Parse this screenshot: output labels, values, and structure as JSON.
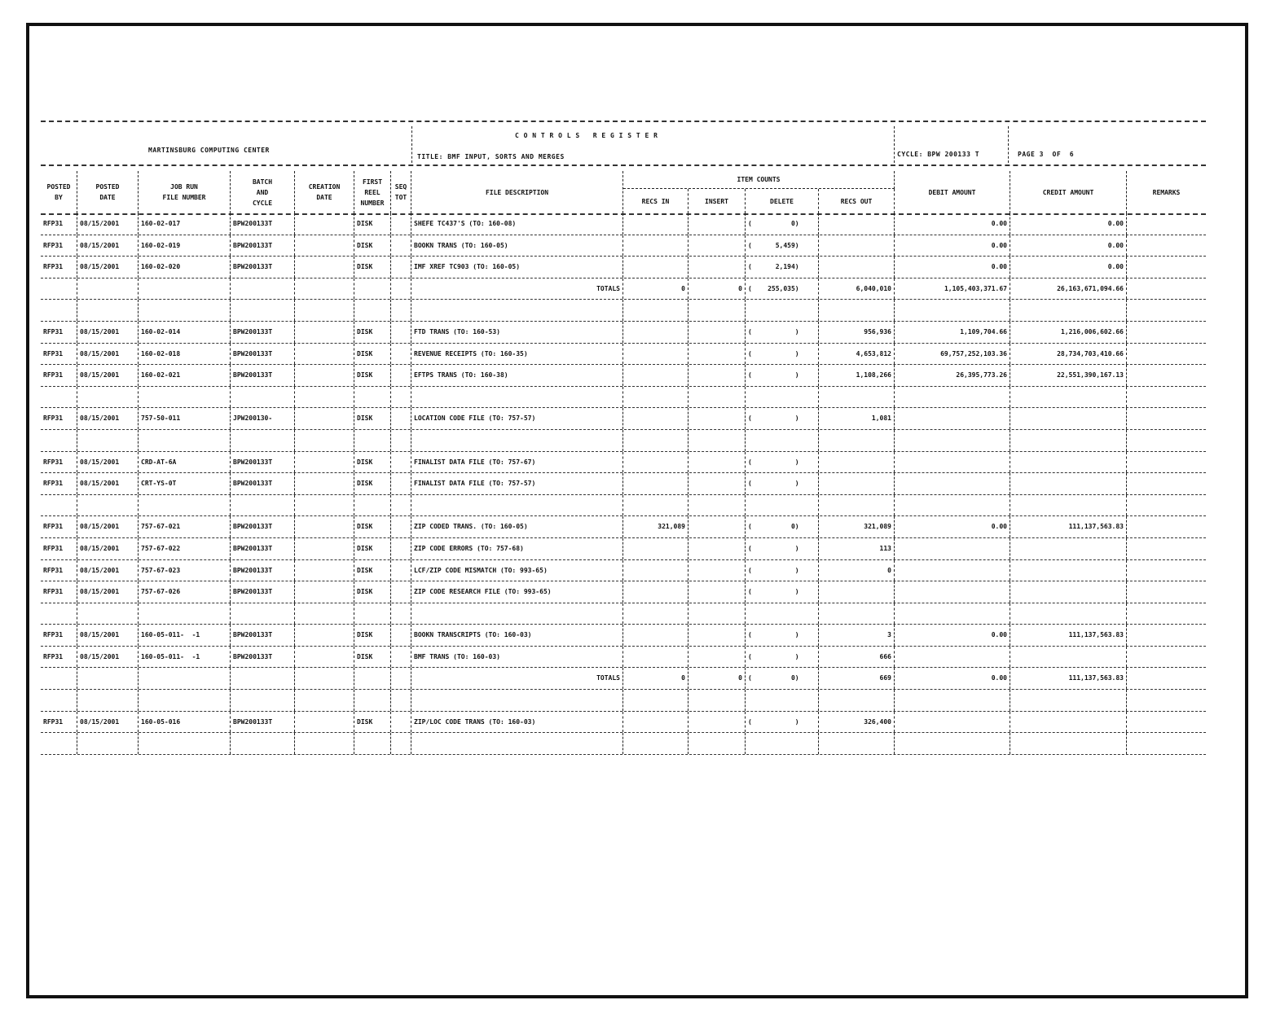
{
  "header": {
    "center_name": "MARTINSBURG COMPUTING CENTER",
    "register_title": "C O N T R O L S   R E G I S T E R",
    "title_line": "TITLE: BMF INPUT, SORTS AND MERGES",
    "cycle": "CYCLE: BPW 200133 T",
    "page": "PAGE 3  OF  6"
  },
  "columns": {
    "posted_by": [
      "POSTED",
      "BY"
    ],
    "posted_date": [
      "POSTED",
      "DATE"
    ],
    "job_run": [
      "JOB RUN",
      "FILE NUMBER"
    ],
    "batch": [
      "BATCH",
      "AND",
      "CYCLE"
    ],
    "creation": [
      "CREATION",
      "DATE"
    ],
    "reel": [
      "FIRST",
      "REEL",
      "NUMBER"
    ],
    "seq": [
      "SEQ",
      "TOT"
    ],
    "file_desc": "FILE DESCRIPTION",
    "item_counts": "ITEM COUNTS",
    "recs_in": "RECS IN",
    "insert": "INSERT",
    "delete": "DELETE",
    "recs_out": "RECS OUT",
    "debit": "DEBIT AMOUNT",
    "credit": "CREDIT AMOUNT",
    "remarks": "REMARKS"
  },
  "rows": [
    {
      "by": "RFP31",
      "date": "08/15/2001",
      "job": "160-02-017",
      "batch": "BPW200133T",
      "reel": "DISK",
      "desc": "SHEFE TC437'S (TO: 160-08)",
      "del": "(          0)",
      "debit": "0.00",
      "credit": "0.00"
    },
    {
      "by": "RFP31",
      "date": "08/15/2001",
      "job": "160-02-019",
      "batch": "BPW200133T",
      "reel": "DISK",
      "desc": "BOOKN TRANS (TO: 160-05)",
      "del": "(      5,459)",
      "debit": "0.00",
      "credit": "0.00"
    },
    {
      "by": "RFP31",
      "date": "08/15/2001",
      "job": "160-02-020",
      "batch": "BPW200133T",
      "reel": "DISK",
      "desc": "IMF XREF TC903 (TO: 160-05)",
      "del": "(      2,194)",
      "debit": "0.00",
      "credit": "0.00"
    },
    {
      "desc": "TOTALS",
      "totals": true,
      "in": "0",
      "ins": "0",
      "del": "(    255,035)",
      "out": "6,040,010",
      "debit": "1,105,403,371.67",
      "credit": "26,163,671,094.66"
    },
    {},
    {
      "by": "RFP31",
      "date": "08/15/2001",
      "job": "160-02-014",
      "batch": "BPW200133T",
      "reel": "DISK",
      "desc": "FTD TRANS (TO: 160-53)",
      "del": "(           )",
      "out": "956,936",
      "debit": "1,109,704.66",
      "credit": "1,216,006,602.66"
    },
    {
      "by": "RFP31",
      "date": "08/15/2001",
      "job": "160-02-018",
      "batch": "BPW200133T",
      "reel": "DISK",
      "desc": "REVENUE RECEIPTS (TO: 160-35)",
      "del": "(           )",
      "out": "4,653,812",
      "debit": "69,757,252,103.36",
      "credit": "28,734,703,410.66"
    },
    {
      "by": "RFP31",
      "date": "08/15/2001",
      "job": "160-02-021",
      "batch": "BPW200133T",
      "reel": "DISK",
      "desc": "EFTPS TRANS (TO: 160-38)",
      "del": "(           )",
      "out": "1,108,266",
      "debit": "26,395,773.26",
      "credit": "22,551,390,167.13"
    },
    {},
    {
      "by": "RFP31",
      "date": "08/15/2001",
      "job": "757-50-011",
      "batch": "JPW200130-",
      "reel": "DISK",
      "desc": "LOCATION CODE FILE (TO: 757-57)",
      "del": "(           )",
      "out": "1,081"
    },
    {},
    {
      "by": "RFP31",
      "date": "08/15/2001",
      "job": "CRD-AT-6A",
      "batch": "BPW200133T",
      "reel": "DISK",
      "desc": "FINALIST DATA FILE (TO: 757-67)",
      "del": "(           )"
    },
    {
      "by": "RFP31",
      "date": "08/15/2001",
      "job": "CRT-YS-0T",
      "batch": "BPW200133T",
      "reel": "DISK",
      "desc": "FINALIST DATA FILE (TO: 757-57)",
      "del": "(           )"
    },
    {},
    {
      "by": "RFP31",
      "date": "08/15/2001",
      "job": "757-67-021",
      "batch": "BPW200133T",
      "reel": "DISK",
      "desc": "ZIP CODED TRANS. (TO: 160-05)",
      "in": "321,089",
      "del": "(          0)",
      "out": "321,089",
      "debit": "0.00",
      "credit": "111,137,563.83"
    },
    {
      "by": "RFP31",
      "date": "08/15/2001",
      "job": "757-67-022",
      "batch": "BPW200133T",
      "reel": "DISK",
      "desc": "ZIP CODE ERRORS (TO: 757-68)",
      "del": "(           )",
      "out": "113"
    },
    {
      "by": "RFP31",
      "date": "08/15/2001",
      "job": "757-67-023",
      "batch": "BPW200133T",
      "reel": "DISK",
      "desc": "LCF/ZIP CODE MISMATCH (TO: 993-65)",
      "del": "(           )",
      "out": "0"
    },
    {
      "by": "RFP31",
      "date": "08/15/2001",
      "job": "757-67-026",
      "batch": "BPW200133T",
      "reel": "DISK",
      "desc": "ZIP CODE RESEARCH FILE (TO: 993-65)",
      "del": "(           )"
    },
    {},
    {
      "by": "RFP31",
      "date": "08/15/2001",
      "job": "160-05-011-  -1",
      "batch": "BPW200133T",
      "reel": "DISK",
      "desc": "BOOKN TRANSCRIPTS (TO: 160-03)",
      "del": "(           )",
      "out": "3",
      "debit": "0.00",
      "credit": "111,137,563.83"
    },
    {
      "by": "RFP31",
      "date": "08/15/2001",
      "job": "160-05-011-  -1",
      "batch": "BPW200133T",
      "reel": "DISK",
      "desc": "BMF TRANS (TO: 160-03)",
      "del": "(           )",
      "out": "666"
    },
    {
      "desc": "TOTALS",
      "totals": true,
      "in": "0",
      "ins": "0",
      "del": "(          0)",
      "out": "669",
      "debit": "0.00",
      "credit": "111,137,563.83"
    },
    {},
    {
      "by": "RFP31",
      "date": "08/15/2001",
      "job": "160-05-016",
      "batch": "BPW200133T",
      "reel": "DISK",
      "desc": "ZIP/LOC CODE TRANS (TO: 160-03)",
      "del": "(           )",
      "out": "326,400"
    },
    {}
  ]
}
